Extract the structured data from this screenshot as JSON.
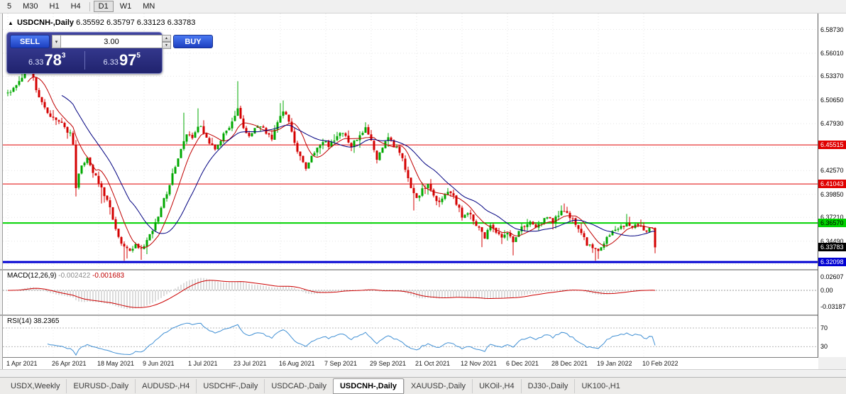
{
  "toolbar": {
    "groups": [
      [
        "5",
        "M30",
        "H1",
        "H4"
      ],
      [
        "D1",
        "W1",
        "MN"
      ]
    ],
    "active": "D1"
  },
  "chart": {
    "collapse_arrow": "▲",
    "symbol": "USDCNH-,Daily",
    "ohlc": "6.35592 6.35797 6.33123 6.33783"
  },
  "trade_panel": {
    "sell_label": "SELL",
    "buy_label": "BUY",
    "lot_value": "3.00",
    "sell_price": {
      "prefix": "6.33",
      "big": "78",
      "sup": "3"
    },
    "buy_price": {
      "prefix": "6.33",
      "big": "97",
      "sup": "5"
    }
  },
  "macd": {
    "label": "MACD(12,26,9)",
    "value_main": "-0.002422",
    "value_signal": "-0.001683",
    "axis": [
      {
        "label": "0.02607",
        "value": 0.02607
      },
      {
        "label": "0.00",
        "value": 0
      },
      {
        "label": "-0.03187",
        "value": -0.03187
      }
    ]
  },
  "rsi": {
    "label": "RSI(14)",
    "value": "38.2365",
    "axis": [
      {
        "label": "70",
        "value": 70
      },
      {
        "label": "30",
        "value": 30
      }
    ]
  },
  "tabs": {
    "items": [
      "USDX,Weekly",
      "EURUSD-,Daily",
      "AUDUSD-,H4",
      "USDCHF-,Daily",
      "USDCAD-,Daily",
      "USDCNH-,Daily",
      "XAUUSD-,Daily",
      "UKOil-,H4",
      "DJ30-,Daily",
      "UK100-,H1"
    ],
    "active": "USDCNH-,Daily"
  },
  "chart_data": {
    "type": "candlestick",
    "symbol": "USDCNH-,Daily",
    "timeframe": "Daily",
    "days": 229,
    "seed": 11,
    "last_price": 6.33783,
    "ohlc_display": {
      "open": 6.35592,
      "high": 6.35797,
      "low": 6.33123,
      "close": 6.33783
    },
    "visible_high": 6.552,
    "visible_low": 6.3215,
    "up_color": "#00a800",
    "down_color": "#d40000",
    "x_ticks": [
      {
        "day": 0,
        "label": "1 Apr 2021"
      },
      {
        "day": 16,
        "label": "26 Apr 2021"
      },
      {
        "day": 32,
        "label": "18 May 2021"
      },
      {
        "day": 48,
        "label": "9 Jun 2021"
      },
      {
        "day": 64,
        "label": "1 Jul 2021"
      },
      {
        "day": 80,
        "label": "23 Jul 2021"
      },
      {
        "day": 96,
        "label": "16 Aug 2021"
      },
      {
        "day": 112,
        "label": "7 Sep 2021"
      },
      {
        "day": 128,
        "label": "29 Sep 2021"
      },
      {
        "day": 144,
        "label": "21 Oct 2021"
      },
      {
        "day": 160,
        "label": "12 Nov 2021"
      },
      {
        "day": 176,
        "label": "6 Dec 2021"
      },
      {
        "day": 192,
        "label": "28 Dec 2021"
      },
      {
        "day": 208,
        "label": "19 Jan 2022"
      },
      {
        "day": 224,
        "label": "10 Feb 2022"
      }
    ],
    "y_axis_labels": [
      {
        "label": "6.58730",
        "price": 6.5873
      },
      {
        "label": "6.56010",
        "price": 6.5601
      },
      {
        "label": "6.53370",
        "price": 6.5337
      },
      {
        "label": "6.50650",
        "price": 6.5065
      },
      {
        "label": "6.47930",
        "price": 6.4793
      },
      {
        "label": "6.42570",
        "price": 6.4257
      },
      {
        "label": "6.39850",
        "price": 6.3985
      },
      {
        "label": "6.37210",
        "price": 6.3721
      },
      {
        "label": "6.34490",
        "price": 6.3449
      }
    ],
    "h_grid_prices": [
      6.5873,
      6.5601,
      6.5337,
      6.5065,
      6.4793,
      6.4521,
      6.4257,
      6.3985,
      6.3721,
      6.3449,
      6.3185
    ],
    "horizontal_lines": [
      {
        "label": "6.45515",
        "price": 6.45515,
        "color": "#e00000",
        "text": "#ffffff",
        "width": 1
      },
      {
        "label": "6.41043",
        "price": 6.41043,
        "color": "#e00000",
        "text": "#ffffff",
        "width": 1
      },
      {
        "label": "6.36570",
        "price": 6.3657,
        "color": "#00d200",
        "text": "#000000",
        "width": 2
      },
      {
        "label": "6.32098",
        "price": 6.32098,
        "color": "#0000d2",
        "text": "#ffffff",
        "width": 3
      }
    ],
    "current_price_badge": {
      "label": "6.33783",
      "price": 6.33783,
      "color": "#000000",
      "text": "#ffffff"
    },
    "moving_averages": [
      {
        "period": 8,
        "color": "#c00000"
      },
      {
        "period": 20,
        "color": "#000080"
      }
    ],
    "anchors_day_close": [
      [
        0,
        6.515
      ],
      [
        3,
        6.524
      ],
      [
        6,
        6.538
      ],
      [
        8,
        6.545
      ],
      [
        10,
        6.518
      ],
      [
        13,
        6.496
      ],
      [
        16,
        6.486
      ],
      [
        19,
        6.478
      ],
      [
        22,
        6.468
      ],
      [
        23,
        6.455
      ],
      [
        24,
        6.408
      ],
      [
        26,
        6.432
      ],
      [
        28,
        6.438
      ],
      [
        30,
        6.425
      ],
      [
        33,
        6.405
      ],
      [
        35,
        6.392
      ],
      [
        37,
        6.37
      ],
      [
        39,
        6.352
      ],
      [
        41,
        6.336
      ],
      [
        43,
        6.333
      ],
      [
        45,
        6.34
      ],
      [
        47,
        6.334
      ],
      [
        49,
        6.345
      ],
      [
        51,
        6.358
      ],
      [
        53,
        6.374
      ],
      [
        55,
        6.392
      ],
      [
        57,
        6.41
      ],
      [
        59,
        6.432
      ],
      [
        61,
        6.452
      ],
      [
        63,
        6.468
      ],
      [
        65,
        6.462
      ],
      [
        67,
        6.478
      ],
      [
        69,
        6.47
      ],
      [
        71,
        6.458
      ],
      [
        73,
        6.452
      ],
      [
        75,
        6.462
      ],
      [
        77,
        6.472
      ],
      [
        79,
        6.482
      ],
      [
        81,
        6.498
      ],
      [
        83,
        6.474
      ],
      [
        85,
        6.466
      ],
      [
        87,
        6.472
      ],
      [
        89,
        6.478
      ],
      [
        91,
        6.47
      ],
      [
        93,
        6.464
      ],
      [
        95,
        6.482
      ],
      [
        97,
        6.496
      ],
      [
        99,
        6.48
      ],
      [
        101,
        6.458
      ],
      [
        103,
        6.442
      ],
      [
        105,
        6.428
      ],
      [
        107,
        6.44
      ],
      [
        109,
        6.452
      ],
      [
        111,
        6.46
      ],
      [
        113,
        6.455
      ],
      [
        115,
        6.462
      ],
      [
        117,
        6.47
      ],
      [
        119,
        6.463
      ],
      [
        121,
        6.455
      ],
      [
        123,
        6.462
      ],
      [
        125,
        6.47
      ],
      [
        126,
        6.474
      ],
      [
        128,
        6.458
      ],
      [
        130,
        6.44
      ],
      [
        132,
        6.452
      ],
      [
        134,
        6.462
      ],
      [
        136,
        6.455
      ],
      [
        138,
        6.448
      ],
      [
        140,
        6.428
      ],
      [
        142,
        6.404
      ],
      [
        144,
        6.392
      ],
      [
        146,
        6.403
      ],
      [
        148,
        6.41
      ],
      [
        150,
        6.398
      ],
      [
        152,
        6.388
      ],
      [
        154,
        6.397
      ],
      [
        156,
        6.402
      ],
      [
        158,
        6.388
      ],
      [
        160,
        6.373
      ],
      [
        162,
        6.379
      ],
      [
        164,
        6.368
      ],
      [
        166,
        6.358
      ],
      [
        168,
        6.35
      ],
      [
        170,
        6.361
      ],
      [
        172,
        6.357
      ],
      [
        174,
        6.351
      ],
      [
        176,
        6.355
      ],
      [
        178,
        6.344
      ],
      [
        180,
        6.357
      ],
      [
        182,
        6.363
      ],
      [
        184,
        6.369
      ],
      [
        186,
        6.361
      ],
      [
        188,
        6.367
      ],
      [
        190,
        6.371
      ],
      [
        192,
        6.367
      ],
      [
        194,
        6.374
      ],
      [
        196,
        6.381
      ],
      [
        198,
        6.374
      ],
      [
        200,
        6.366
      ],
      [
        202,
        6.354
      ],
      [
        204,
        6.342
      ],
      [
        206,
        6.335
      ],
      [
        208,
        6.333
      ],
      [
        210,
        6.344
      ],
      [
        212,
        6.351
      ],
      [
        214,
        6.357
      ],
      [
        216,
        6.361
      ],
      [
        218,
        6.367
      ],
      [
        220,
        6.359
      ],
      [
        222,
        6.364
      ],
      [
        224,
        6.357
      ],
      [
        226,
        6.358
      ],
      [
        227,
        6.357
      ],
      [
        228,
        6.33783
      ]
    ],
    "wick_highs": [
      [
        7,
        6.549
      ],
      [
        8,
        6.546
      ],
      [
        62,
        6.492
      ],
      [
        67,
        6.497
      ],
      [
        81,
        6.528
      ],
      [
        96,
        6.503
      ],
      [
        97,
        6.506
      ],
      [
        126,
        6.481
      ],
      [
        146,
        6.412
      ],
      [
        196,
        6.388
      ],
      [
        218,
        6.376
      ]
    ],
    "wick_lows": [
      [
        24,
        6.396
      ],
      [
        33,
        6.388
      ],
      [
        41,
        6.3225
      ],
      [
        42,
        6.325
      ],
      [
        47,
        6.3235
      ],
      [
        49,
        6.33
      ],
      [
        143,
        6.38
      ],
      [
        167,
        6.338
      ],
      [
        178,
        6.3285
      ],
      [
        207,
        6.3225
      ],
      [
        208,
        6.3245
      ],
      [
        228,
        6.331
      ]
    ],
    "indicators": [
      {
        "name": "MACD",
        "params": "12,26,9",
        "values": [
          -0.002422,
          -0.001683
        ],
        "axis": [
          0.02607,
          0,
          -0.03187
        ]
      },
      {
        "name": "RSI",
        "params": "14",
        "value": 38.2365,
        "levels": [
          70,
          30
        ]
      }
    ]
  }
}
